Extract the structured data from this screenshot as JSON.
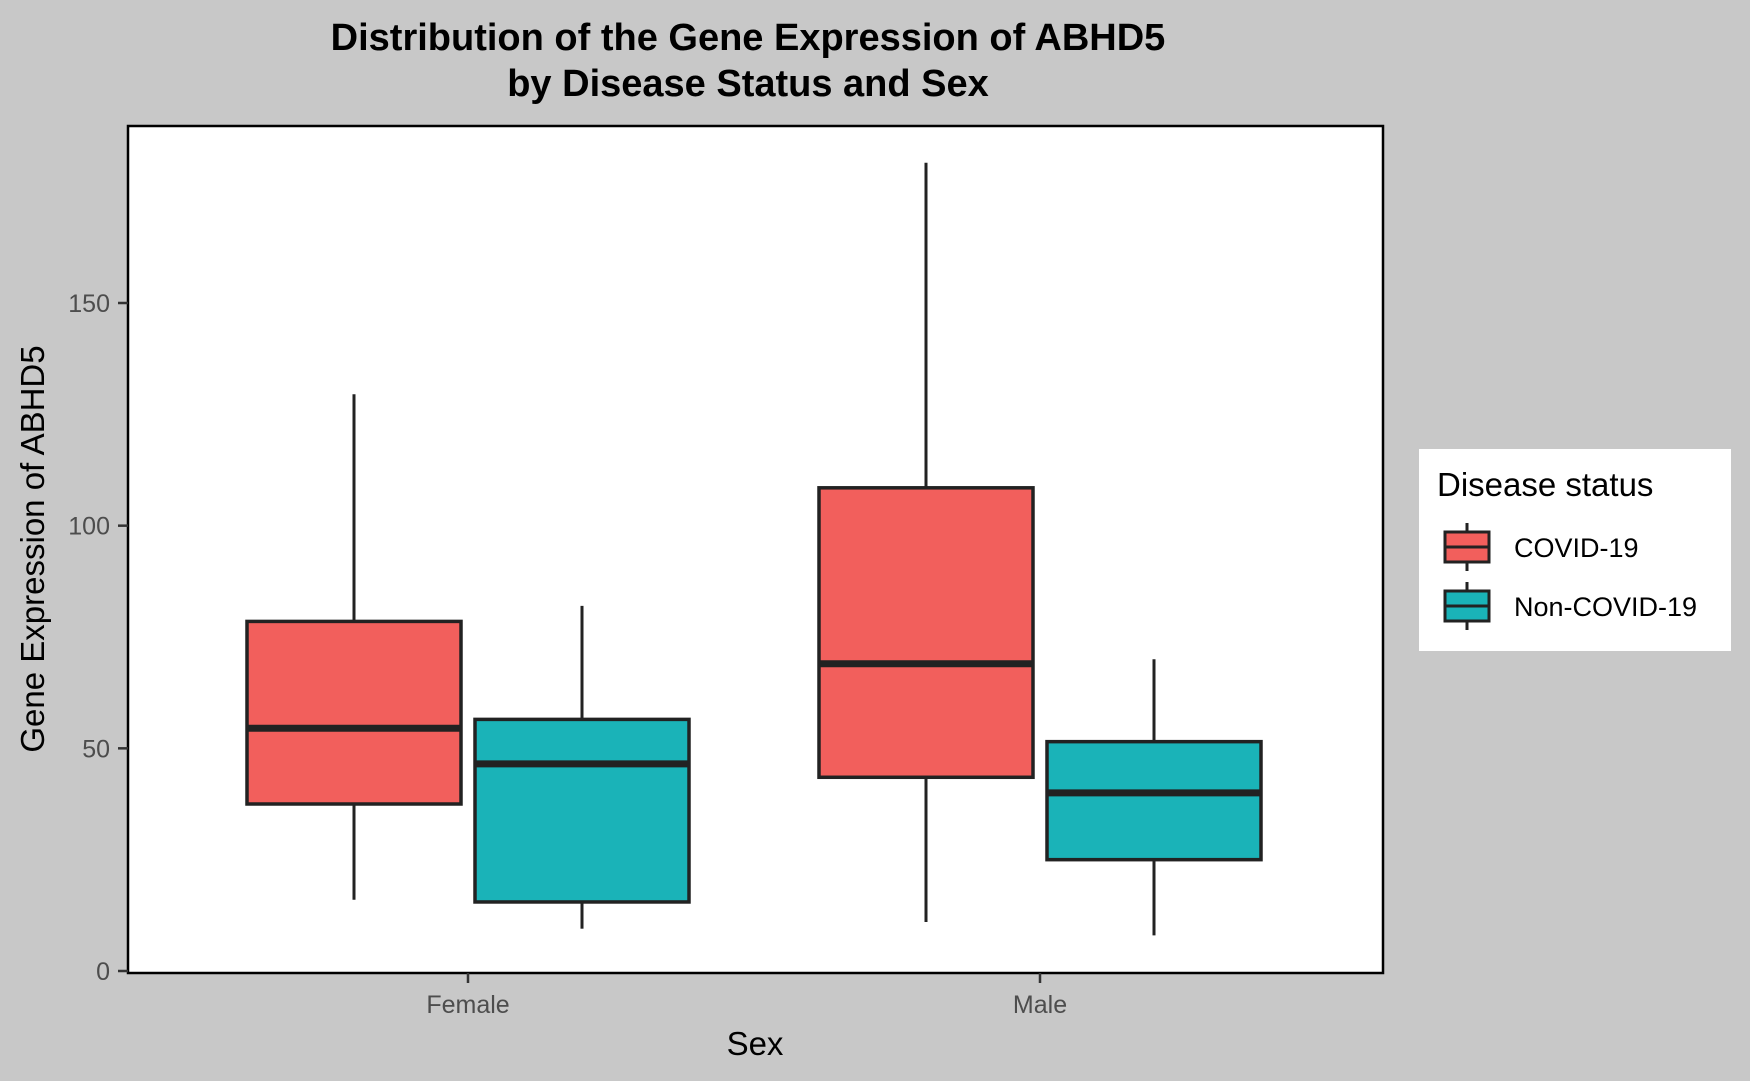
{
  "chart_data": {
    "type": "boxplot",
    "title": [
      "Distribution of the Gene Expression of ABHD5",
      "by Disease Status and Sex"
    ],
    "xlabel": "Sex",
    "ylabel": "Gene Expression of ABHD5",
    "categories": [
      "Female",
      "Male"
    ],
    "ylim": [
      0,
      200
    ],
    "yticks": [
      0,
      50,
      100,
      150
    ],
    "grid": false,
    "legend": {
      "title": "Disease status",
      "position": "right"
    },
    "series": [
      {
        "name": "COVID-19",
        "color": "#F25F5C",
        "boxes": [
          {
            "category": "Female",
            "min": 16,
            "q1": 37.5,
            "median": 54.5,
            "q3": 78.5,
            "max": 129.5
          },
          {
            "category": "Male",
            "min": 11,
            "q1": 43.5,
            "median": 69,
            "q3": 108.5,
            "max": 181.5
          }
        ]
      },
      {
        "name": "Non-COVID-19",
        "color": "#1AB3B8",
        "boxes": [
          {
            "category": "Female",
            "min": 9.5,
            "q1": 15.5,
            "median": 46.5,
            "q3": 56.5,
            "max": 82
          },
          {
            "category": "Male",
            "min": 8,
            "q1": 25,
            "median": 40,
            "q3": 51.5,
            "max": 70
          }
        ]
      }
    ]
  }
}
